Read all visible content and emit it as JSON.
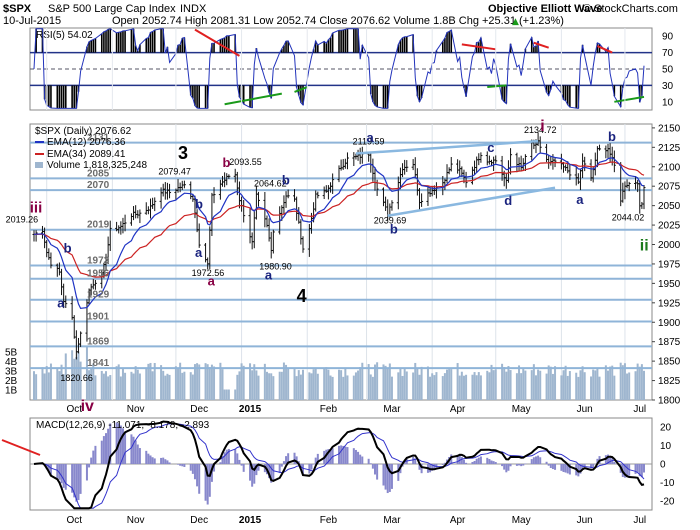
{
  "header": {
    "symbol": "$SPX",
    "name": "S&P 500 Large Cap Index",
    "exchange": "INDX",
    "date": "10-Jul-2015",
    "ohlc_text": "Open 2052.74  High 2081.31  Low 2052.74  Close 2076.62  Volume 1.8B  Chg +25.31 (+1.23%)",
    "arrow": "▲",
    "brand_text": "Objective Elliott Wave",
    "credit": "© StockCharts.com"
  },
  "rsi_panel": {
    "legend": "RSI(5) 54.02",
    "ticks": [
      "90",
      "70",
      "50",
      "30",
      "10"
    ]
  },
  "price_panel": {
    "legend_title": "$SPX (Daily) 2076.62",
    "legend_ema12": "EMA(12) 2076.36",
    "legend_ema34": "EMA(34) 2089.41",
    "legend_volume": "Volume 1,818,325,248",
    "price_ticks": [
      "2150",
      "2125",
      "2100",
      "2075",
      "2050",
      "2025",
      "2000",
      "1975",
      "1950",
      "1925",
      "1900",
      "1875",
      "1850",
      "1825",
      "1800"
    ],
    "volume_ticks": [
      "5B",
      "4B",
      "3B",
      "2B",
      "1B"
    ],
    "level_labels": [
      "2131",
      "2085",
      "2070",
      "2019",
      "1973",
      "1956",
      "1929",
      "1901",
      "1869",
      "1841"
    ],
    "price_labels": [
      "2019.26",
      "1820.66",
      "2079.47",
      "1972.56",
      "2093.55",
      "2064.62",
      "1980.90",
      "2119.59",
      "2039.69",
      "2134.72",
      "2044.02"
    ],
    "wave_labels": [
      "iii",
      "iv",
      "a",
      "b",
      "a",
      "3",
      "b",
      "b",
      "a",
      "a",
      "b",
      "4",
      "a",
      "b",
      "c",
      "d",
      "i",
      "a",
      "b",
      "ii"
    ]
  },
  "macd_panel": {
    "legend": "MACD(12,26,9) -11.071, -8.178, -2.893",
    "ticks": [
      "20",
      "10",
      "0",
      "-10",
      "-20"
    ]
  },
  "x_labels": [
    "Oct",
    "Nov",
    "Dec",
    "2015",
    "Feb",
    "Mar",
    "Apr",
    "May",
    "Jun",
    "Jul"
  ],
  "colors": {
    "price_bar": "#111111",
    "ema12": "#1f33c4",
    "ema34": "#cc2222",
    "volume": "#9fb6cf",
    "level_line": "#8fb4d8",
    "rsi_line": "#2233bb",
    "rsi_band": "#223388",
    "macd_line": "#000000",
    "macd_signal": "#3333cc",
    "macd_hist": "#8888cc",
    "wave_blue": "#1a237e",
    "wave_black": "#000000",
    "wave_purple": "#880044",
    "wave_green": "#1a7a1a",
    "trend_red": "#e02020",
    "trend_green": "#1a9a1a",
    "trend_blue": "#8ab8e0"
  },
  "chart_data": {
    "type": "line",
    "title": "$SPX S&P 500 Large Cap Index INDX",
    "x_range": [
      "2014-09-25",
      "2015-07-10"
    ],
    "price": {
      "ylim": [
        1800,
        2155
      ],
      "close_points": [
        [
          "2014-09-25",
          2013
        ],
        [
          "2014-09-29",
          2019
        ],
        [
          "2014-10-01",
          1990
        ],
        [
          "2014-10-03",
          1976
        ],
        [
          "2014-10-07",
          1964
        ],
        [
          "2014-10-09",
          1928
        ],
        [
          "2014-10-13",
          1905
        ],
        [
          "2014-10-15",
          1862
        ],
        [
          "2014-10-17",
          1885
        ],
        [
          "2014-10-21",
          1941
        ],
        [
          "2014-10-23",
          1950
        ],
        [
          "2014-10-27",
          1961
        ],
        [
          "2014-10-29",
          1982
        ],
        [
          "2014-10-31",
          2018
        ],
        [
          "2014-11-05",
          2023
        ],
        [
          "2014-11-10",
          2038
        ],
        [
          "2014-11-14",
          2040
        ],
        [
          "2014-11-19",
          2048
        ],
        [
          "2014-11-24",
          2069
        ],
        [
          "2014-11-28",
          2067
        ],
        [
          "2014-12-03",
          2074
        ],
        [
          "2014-12-05",
          2076
        ],
        [
          "2014-12-09",
          2060
        ],
        [
          "2014-12-12",
          2002
        ],
        [
          "2014-12-16",
          1974
        ],
        [
          "2014-12-18",
          2061
        ],
        [
          "2014-12-22",
          2078
        ],
        [
          "2014-12-26",
          2088
        ],
        [
          "2014-12-29",
          2090
        ],
        [
          "2014-12-31",
          2058
        ],
        [
          "2015-01-06",
          2002
        ],
        [
          "2015-01-08",
          2062
        ],
        [
          "2015-01-13",
          2023
        ],
        [
          "2015-01-15",
          1992
        ],
        [
          "2015-01-16",
          2019
        ],
        [
          "2015-01-22",
          2063
        ],
        [
          "2015-01-26",
          2057
        ],
        [
          "2015-01-30",
          1995
        ],
        [
          "2015-02-02",
          2020
        ],
        [
          "2015-02-05",
          2062
        ],
        [
          "2015-02-10",
          2068
        ],
        [
          "2015-02-17",
          2100
        ],
        [
          "2015-02-20",
          2110
        ],
        [
          "2015-02-25",
          2113
        ],
        [
          "2015-03-02",
          2117
        ],
        [
          "2015-03-06",
          2071
        ],
        [
          "2015-03-11",
          2040
        ],
        [
          "2015-03-16",
          2081
        ],
        [
          "2015-03-18",
          2099
        ],
        [
          "2015-03-23",
          2104
        ],
        [
          "2015-03-26",
          2056
        ],
        [
          "2015-03-31",
          2068
        ],
        [
          "2015-04-06",
          2080
        ],
        [
          "2015-04-10",
          2102
        ],
        [
          "2015-04-14",
          2095
        ],
        [
          "2015-04-17",
          2081
        ],
        [
          "2015-04-24",
          2117
        ],
        [
          "2015-04-27",
          2108
        ],
        [
          "2015-05-01",
          2108
        ],
        [
          "2015-05-06",
          2080
        ],
        [
          "2015-05-08",
          2116
        ],
        [
          "2015-05-13",
          2098
        ],
        [
          "2015-05-18",
          2130
        ],
        [
          "2015-05-20",
          2126
        ],
        [
          "2015-05-21",
          2131
        ],
        [
          "2015-05-26",
          2104
        ],
        [
          "2015-05-29",
          2107
        ],
        [
          "2015-06-04",
          2095
        ],
        [
          "2015-06-09",
          2080
        ],
        [
          "2015-06-11",
          2108
        ],
        [
          "2015-06-15",
          2084
        ],
        [
          "2015-06-18",
          2121
        ],
        [
          "2015-06-23",
          2124
        ],
        [
          "2015-06-26",
          2101
        ],
        [
          "2015-06-29",
          2058
        ],
        [
          "2015-07-01",
          2077
        ],
        [
          "2015-07-07",
          2081
        ],
        [
          "2015-07-08",
          2047
        ],
        [
          "2015-07-09",
          2052
        ],
        [
          "2015-07-10",
          2076
        ]
      ],
      "levels": [
        2131,
        2085,
        2070,
        2019,
        1973,
        1956,
        1929,
        1901,
        1869,
        1841
      ],
      "annotations": [
        {
          "label": "2019.26",
          "x": "2014-09-22",
          "y": 2019.26
        },
        {
          "label": "1820.66",
          "x": "2014-10-15",
          "y": 1820.66
        },
        {
          "label": "2079.47",
          "x": "2014-12-05",
          "y": 2079.47
        },
        {
          "label": "1972.56",
          "x": "2014-12-16",
          "y": 1972.56
        },
        {
          "label": "2093.55",
          "x": "2014-12-29",
          "y": 2093.55
        },
        {
          "label": "2064.62",
          "x": "2015-01-22",
          "y": 2064.62
        },
        {
          "label": "1980.90",
          "x": "2015-01-15",
          "y": 1980.9
        },
        {
          "label": "2119.59",
          "x": "2015-03-02",
          "y": 2119.59
        },
        {
          "label": "2039.69",
          "x": "2015-03-11",
          "y": 2039.69
        },
        {
          "label": "2134.72",
          "x": "2015-05-20",
          "y": 2134.72
        },
        {
          "label": "2044.02",
          "x": "2015-07-08",
          "y": 2044.02
        }
      ]
    },
    "rsi": {
      "ylim": [
        0,
        100
      ],
      "last": 54.02
    },
    "macd": {
      "ylim": [
        -25,
        25
      ],
      "values": [
        -11.071,
        -8.178,
        -2.893
      ]
    },
    "volume": {
      "ylim": [
        "0B",
        "6B"
      ]
    }
  }
}
